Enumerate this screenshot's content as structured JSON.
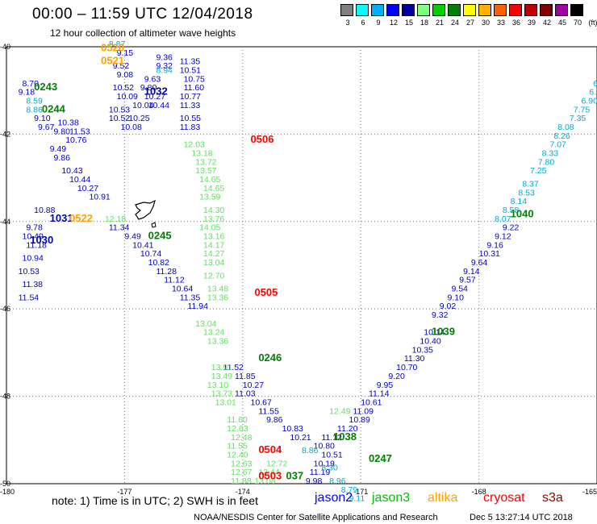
{
  "header": {
    "title": "00:00 – 11:59 UTC 12/04/2018",
    "subtitle": "12 hour collection of altimeter wave heights"
  },
  "colorbar": {
    "unit": "(ft)",
    "labels": [
      "3",
      "6",
      "9",
      "12",
      "15",
      "18",
      "21",
      "24",
      "27",
      "30",
      "33",
      "36",
      "39",
      "42",
      "45",
      "70"
    ],
    "colors": [
      "#808080",
      "#00ffff",
      "#00b0ff",
      "#0000ff",
      "#0000a0",
      "#80ff80",
      "#00d000",
      "#008000",
      "#ffff00",
      "#ffb000",
      "#ff6000",
      "#ff0000",
      "#c00000",
      "#800000",
      "#a000a0",
      "#000000"
    ]
  },
  "axes": {
    "lon_labels": [
      "-180",
      "-177",
      "-174",
      "-171",
      "-168",
      "-165"
    ],
    "lat_labels": [
      "-40",
      "-42",
      "-44",
      "-46",
      "-48",
      "-50"
    ]
  },
  "chart_data": {
    "type": "scatter",
    "x_range": [
      -180,
      -165
    ],
    "y_range": [
      -50,
      -40
    ],
    "grid": true,
    "annotations": [
      {
        "text": "0520",
        "x": -177.6,
        "y": -40.1,
        "color": "#ffa000"
      },
      {
        "text": "0521",
        "x": -177.6,
        "y": -40.4,
        "color": "#ffa000"
      },
      {
        "text": "0243",
        "x": -179.3,
        "y": -41.0,
        "color": "#008000"
      },
      {
        "text": "0244",
        "x": -179.1,
        "y": -41.5,
        "color": "#008000"
      },
      {
        "text": "1032",
        "x": -176.5,
        "y": -41.1,
        "color": "#0000b0"
      },
      {
        "text": "0506",
        "x": -173.8,
        "y": -42.2,
        "color": "#ff0000"
      },
      {
        "text": "1031",
        "x": -178.9,
        "y": -44.0,
        "color": "#0000b0"
      },
      {
        "text": "0522",
        "x": -178.4,
        "y": -44.0,
        "color": "#ffa000"
      },
      {
        "text": "1030",
        "x": -179.4,
        "y": -44.5,
        "color": "#0000b0"
      },
      {
        "text": "0245",
        "x": -176.4,
        "y": -44.4,
        "color": "#008000"
      },
      {
        "text": "0505",
        "x": -173.7,
        "y": -45.7,
        "color": "#ff0000"
      },
      {
        "text": "0246",
        "x": -173.6,
        "y": -47.2,
        "color": "#008000"
      },
      {
        "text": "1039",
        "x": -169.2,
        "y": -46.6,
        "color": "#008000"
      },
      {
        "text": "1040",
        "x": -167.2,
        "y": -43.9,
        "color": "#008000"
      },
      {
        "text": "1038",
        "x": -171.7,
        "y": -49.0,
        "color": "#008000"
      },
      {
        "text": "0504",
        "x": -173.6,
        "y": -49.3,
        "color": "#ff0000"
      },
      {
        "text": "0247",
        "x": -170.8,
        "y": -49.5,
        "color": "#008000"
      },
      {
        "text": "0503",
        "x": -173.6,
        "y": -49.9,
        "color": "#ff0000"
      },
      {
        "text": "037",
        "x": -172.9,
        "y": -49.9,
        "color": "#008000"
      }
    ],
    "series": [
      {
        "name": "jason2",
        "color": "#0000c0",
        "points": [
          {
            "x": -179.6,
            "y": -40.9,
            "v": "8.70"
          },
          {
            "x": -179.7,
            "y": -41.1,
            "v": "9.18"
          },
          {
            "x": -179.3,
            "y": -41.7,
            "v": "9.10"
          },
          {
            "x": -179.2,
            "y": -41.9,
            "v": "9.67"
          },
          {
            "x": -178.7,
            "y": -41.8,
            "v": "10.38"
          },
          {
            "x": -178.8,
            "y": -42.0,
            "v": "9.80"
          },
          {
            "x": -178.4,
            "y": -42.0,
            "v": "11.53"
          },
          {
            "x": -178.5,
            "y": -42.2,
            "v": "10.76"
          },
          {
            "x": -178.9,
            "y": -42.4,
            "v": "9.49"
          },
          {
            "x": -178.8,
            "y": -42.6,
            "v": "9.86"
          },
          {
            "x": -178.6,
            "y": -42.9,
            "v": "10.43"
          },
          {
            "x": -178.4,
            "y": -43.1,
            "v": "10.44"
          },
          {
            "x": -178.2,
            "y": -43.3,
            "v": "10.27"
          },
          {
            "x": -177.9,
            "y": -43.5,
            "v": "10.91"
          },
          {
            "x": -179.3,
            "y": -43.8,
            "v": "10.88"
          },
          {
            "x": -179.5,
            "y": -44.2,
            "v": "9.78"
          },
          {
            "x": -179.6,
            "y": -44.4,
            "v": "10.49"
          },
          {
            "x": -179.5,
            "y": -44.6,
            "v": "11.18"
          },
          {
            "x": -179.6,
            "y": -44.9,
            "v": "10.94"
          },
          {
            "x": -179.7,
            "y": -45.2,
            "v": "10.53"
          },
          {
            "x": -179.6,
            "y": -45.5,
            "v": "11.38"
          },
          {
            "x": -179.7,
            "y": -45.8,
            "v": "11.54"
          },
          {
            "x": -177.2,
            "y": -40.2,
            "v": "9.15"
          },
          {
            "x": -177.3,
            "y": -40.5,
            "v": "9.52"
          },
          {
            "x": -177.2,
            "y": -40.7,
            "v": "9.08"
          },
          {
            "x": -177.3,
            "y": -41.0,
            "v": "10.52"
          },
          {
            "x": -177.2,
            "y": -41.2,
            "v": "10.09"
          },
          {
            "x": -177.4,
            "y": -41.5,
            "v": "10.53"
          },
          {
            "x": -177.4,
            "y": -41.7,
            "v": "10.52"
          },
          {
            "x": -176.8,
            "y": -41.4,
            "v": "10.04"
          },
          {
            "x": -176.9,
            "y": -41.7,
            "v": "10.25"
          },
          {
            "x": -177.1,
            "y": -41.9,
            "v": "10.08"
          },
          {
            "x": -176.5,
            "y": -40.8,
            "v": "9.63"
          },
          {
            "x": -176.6,
            "y": -41.0,
            "v": "9.80"
          },
          {
            "x": -176.5,
            "y": -41.2,
            "v": "10.27"
          },
          {
            "x": -176.4,
            "y": -41.4,
            "v": "10.44"
          },
          {
            "x": -176.2,
            "y": -40.3,
            "v": "9.36"
          },
          {
            "x": -176.2,
            "y": -40.5,
            "v": "9.32"
          },
          {
            "x": -175.6,
            "y": -40.4,
            "v": "11.35"
          },
          {
            "x": -175.6,
            "y": -40.6,
            "v": "10.51"
          },
          {
            "x": -175.5,
            "y": -40.8,
            "v": "10.75"
          },
          {
            "x": -175.5,
            "y": -41.0,
            "v": "11.60"
          },
          {
            "x": -175.6,
            "y": -41.2,
            "v": "10.77"
          },
          {
            "x": -175.6,
            "y": -41.4,
            "v": "11.33"
          },
          {
            "x": -175.6,
            "y": -41.7,
            "v": "10.55"
          },
          {
            "x": -175.6,
            "y": -41.9,
            "v": "11.83"
          },
          {
            "x": -177.4,
            "y": -44.2,
            "v": "11.34"
          },
          {
            "x": -177.0,
            "y": -44.4,
            "v": "9.49"
          },
          {
            "x": -176.8,
            "y": -44.6,
            "v": "10.41"
          },
          {
            "x": -176.6,
            "y": -44.8,
            "v": "10.74"
          },
          {
            "x": -176.4,
            "y": -45.0,
            "v": "10.82"
          },
          {
            "x": -176.2,
            "y": -45.2,
            "v": "11.28"
          },
          {
            "x": -176.0,
            "y": -45.4,
            "v": "11.12"
          },
          {
            "x": -175.8,
            "y": -45.6,
            "v": "10.64"
          },
          {
            "x": -175.6,
            "y": -45.8,
            "v": "11.35"
          },
          {
            "x": -175.4,
            "y": -46.0,
            "v": "11.94"
          },
          {
            "x": -174.5,
            "y": -47.4,
            "v": "11.52"
          },
          {
            "x": -174.2,
            "y": -47.6,
            "v": "11.85"
          },
          {
            "x": -174.0,
            "y": -47.8,
            "v": "10.27"
          },
          {
            "x": -174.2,
            "y": -48.0,
            "v": "11.03"
          },
          {
            "x": -173.8,
            "y": -48.2,
            "v": "10.67"
          },
          {
            "x": -173.6,
            "y": -48.4,
            "v": "11.55"
          },
          {
            "x": -173.4,
            "y": -48.6,
            "v": "9.86"
          },
          {
            "x": -173.0,
            "y": -48.8,
            "v": "10.83"
          },
          {
            "x": -172.8,
            "y": -49.0,
            "v": "10.21"
          },
          {
            "x": -172.2,
            "y": -49.2,
            "v": "10.80"
          },
          {
            "x": -172.0,
            "y": -49.4,
            "v": "10.51"
          },
          {
            "x": -172.2,
            "y": -49.6,
            "v": "10.19"
          },
          {
            "x": -172.3,
            "y": -49.8,
            "v": "11.19"
          },
          {
            "x": -172.4,
            "y": -50.0,
            "v": "9.98"
          },
          {
            "x": -172.0,
            "y": -49.0,
            "v": "11.12"
          },
          {
            "x": -171.6,
            "y": -48.8,
            "v": "11.20"
          },
          {
            "x": -171.3,
            "y": -48.6,
            "v": "10.89"
          },
          {
            "x": -171.2,
            "y": -48.4,
            "v": "11.09"
          },
          {
            "x": -171.0,
            "y": -48.2,
            "v": "10.61"
          },
          {
            "x": -170.8,
            "y": -48.0,
            "v": "11.14"
          },
          {
            "x": -170.6,
            "y": -47.8,
            "v": "9.95"
          },
          {
            "x": -170.3,
            "y": -47.6,
            "v": "9.20"
          },
          {
            "x": -170.1,
            "y": -47.4,
            "v": "10.70"
          },
          {
            "x": -169.9,
            "y": -47.2,
            "v": "11.30"
          },
          {
            "x": -169.7,
            "y": -47.0,
            "v": "10.35"
          },
          {
            "x": -169.5,
            "y": -46.8,
            "v": "10.40"
          },
          {
            "x": -169.4,
            "y": -46.6,
            "v": "10.14"
          },
          {
            "x": -169.2,
            "y": -46.2,
            "v": "9.32"
          },
          {
            "x": -169.0,
            "y": -46.0,
            "v": "9.02"
          },
          {
            "x": -168.8,
            "y": -45.8,
            "v": "9.10"
          },
          {
            "x": -168.7,
            "y": -45.6,
            "v": "9.54"
          },
          {
            "x": -168.5,
            "y": -45.4,
            "v": "9.57"
          },
          {
            "x": -168.4,
            "y": -45.2,
            "v": "9.14"
          },
          {
            "x": -168.2,
            "y": -45.0,
            "v": "9.64"
          },
          {
            "x": -168.0,
            "y": -44.8,
            "v": "10.31"
          },
          {
            "x": -167.8,
            "y": -44.6,
            "v": "9.16"
          },
          {
            "x": -167.6,
            "y": -44.4,
            "v": "9.12"
          },
          {
            "x": -167.4,
            "y": -44.2,
            "v": "9.22"
          }
        ]
      },
      {
        "name": "jason3",
        "color": "#60e060",
        "points": [
          {
            "x": -175.5,
            "y": -42.3,
            "v": "12.03"
          },
          {
            "x": -175.3,
            "y": -42.5,
            "v": "13.18"
          },
          {
            "x": -175.2,
            "y": -42.7,
            "v": "13.72"
          },
          {
            "x": -175.2,
            "y": -42.9,
            "v": "13.57"
          },
          {
            "x": -175.1,
            "y": -43.1,
            "v": "14.65"
          },
          {
            "x": -175.0,
            "y": -43.3,
            "v": "14.65"
          },
          {
            "x": -175.1,
            "y": -43.5,
            "v": "13.59"
          },
          {
            "x": -175.0,
            "y": -43.8,
            "v": "14.30"
          },
          {
            "x": -175.0,
            "y": -44.0,
            "v": "13.76"
          },
          {
            "x": -175.1,
            "y": -44.2,
            "v": "14.05"
          },
          {
            "x": -175.0,
            "y": -44.4,
            "v": "13.16"
          },
          {
            "x": -175.0,
            "y": -44.6,
            "v": "14.17"
          },
          {
            "x": -175.0,
            "y": -44.8,
            "v": "14.27"
          },
          {
            "x": -175.0,
            "y": -45.0,
            "v": "13.04"
          },
          {
            "x": -175.0,
            "y": -45.3,
            "v": "12.70"
          },
          {
            "x": -174.9,
            "y": -45.6,
            "v": "13.48"
          },
          {
            "x": -174.9,
            "y": -45.8,
            "v": "13.36"
          },
          {
            "x": -175.2,
            "y": -46.4,
            "v": "13.04"
          },
          {
            "x": -175.0,
            "y": -46.6,
            "v": "13.24"
          },
          {
            "x": -174.9,
            "y": -46.8,
            "v": "13.36"
          },
          {
            "x": -174.8,
            "y": -47.4,
            "v": "13.91"
          },
          {
            "x": -174.8,
            "y": -47.6,
            "v": "13.49"
          },
          {
            "x": -174.9,
            "y": -47.8,
            "v": "13.10"
          },
          {
            "x": -174.8,
            "y": -48.0,
            "v": "13.73"
          },
          {
            "x": -174.7,
            "y": -48.2,
            "v": "13.01"
          },
          {
            "x": -174.4,
            "y": -48.6,
            "v": "11.60"
          },
          {
            "x": -174.4,
            "y": -48.8,
            "v": "12.63"
          },
          {
            "x": -174.3,
            "y": -49.0,
            "v": "12.48"
          },
          {
            "x": -174.4,
            "y": -49.2,
            "v": "11.55"
          },
          {
            "x": -174.4,
            "y": -49.4,
            "v": "12.40"
          },
          {
            "x": -174.3,
            "y": -49.6,
            "v": "12.63"
          },
          {
            "x": -174.3,
            "y": -49.8,
            "v": "12.67"
          },
          {
            "x": -174.3,
            "y": -50.0,
            "v": "11.88"
          },
          {
            "x": -173.4,
            "y": -49.6,
            "v": "12.72"
          },
          {
            "x": -173.6,
            "y": -49.8,
            "v": "12.44"
          },
          {
            "x": -173.7,
            "y": -50.0,
            "v": "13.08"
          },
          {
            "x": -171.8,
            "y": -48.4,
            "v": "12.49"
          },
          {
            "x": -177.5,
            "y": -44.0,
            "v": "12.18"
          }
        ]
      },
      {
        "name": "altika",
        "color": "#00a8d0",
        "points": [
          {
            "x": -179.5,
            "y": -41.3,
            "v": "8.59"
          },
          {
            "x": -179.5,
            "y": -41.5,
            "v": "8.86"
          },
          {
            "x": -176.2,
            "y": -40.6,
            "v": "8.94"
          },
          {
            "x": -177.4,
            "y": -40.0,
            "v": "8.87"
          },
          {
            "x": -172.5,
            "y": -49.3,
            "v": "8.86"
          },
          {
            "x": -172.0,
            "y": -49.7,
            "v": "8.30"
          },
          {
            "x": -171.8,
            "y": -50.0,
            "v": "8.96"
          },
          {
            "x": -171.5,
            "y": -50.2,
            "v": "8.79"
          },
          {
            "x": -171.3,
            "y": -50.4,
            "v": "9.11"
          },
          {
            "x": -167.6,
            "y": -44.0,
            "v": "8.07"
          },
          {
            "x": -167.4,
            "y": -43.8,
            "v": "8.58"
          },
          {
            "x": -167.2,
            "y": -43.6,
            "v": "8.14"
          },
          {
            "x": -167.0,
            "y": -43.4,
            "v": "8.53"
          },
          {
            "x": -166.9,
            "y": -43.2,
            "v": "8.37"
          },
          {
            "x": -166.7,
            "y": -42.9,
            "v": "7.25"
          },
          {
            "x": -166.5,
            "y": -42.7,
            "v": "7.80"
          },
          {
            "x": -166.4,
            "y": -42.5,
            "v": "8.33"
          },
          {
            "x": -166.2,
            "y": -42.3,
            "v": "7.07"
          },
          {
            "x": -166.1,
            "y": -42.1,
            "v": "8.26"
          },
          {
            "x": -166.0,
            "y": -41.9,
            "v": "8.08"
          },
          {
            "x": -165.7,
            "y": -41.7,
            "v": "7.35"
          },
          {
            "x": -165.6,
            "y": -41.5,
            "v": "7.75"
          },
          {
            "x": -165.4,
            "y": -41.3,
            "v": "6.90"
          },
          {
            "x": -165.2,
            "y": -41.1,
            "v": "6.74"
          },
          {
            "x": -165.1,
            "y": -40.9,
            "v": "6.46"
          },
          {
            "x": -165.0,
            "y": -40.7,
            "v": "6.97"
          },
          {
            "x": -164.8,
            "y": -40.5,
            "v": "7.36"
          },
          {
            "x": -164.7,
            "y": -40.3,
            "v": "6.69"
          }
        ]
      }
    ]
  },
  "footer": {
    "note": "note: 1) Time is in UTC; 2) SWH is in feet",
    "satellites": [
      {
        "name": "jason2",
        "color": "#0000ff"
      },
      {
        "name": "jason3",
        "color": "#00c000"
      },
      {
        "name": "altika",
        "color": "#ffa000"
      },
      {
        "name": "cryosat",
        "color": "#ff0000"
      },
      {
        "name": "s3a",
        "color": "#a00000"
      }
    ],
    "credit": "NOAA/NESDIS Center for Satellite Applications and Research",
    "timestamp": "Dec  5 13:27:14 UTC 2018"
  }
}
